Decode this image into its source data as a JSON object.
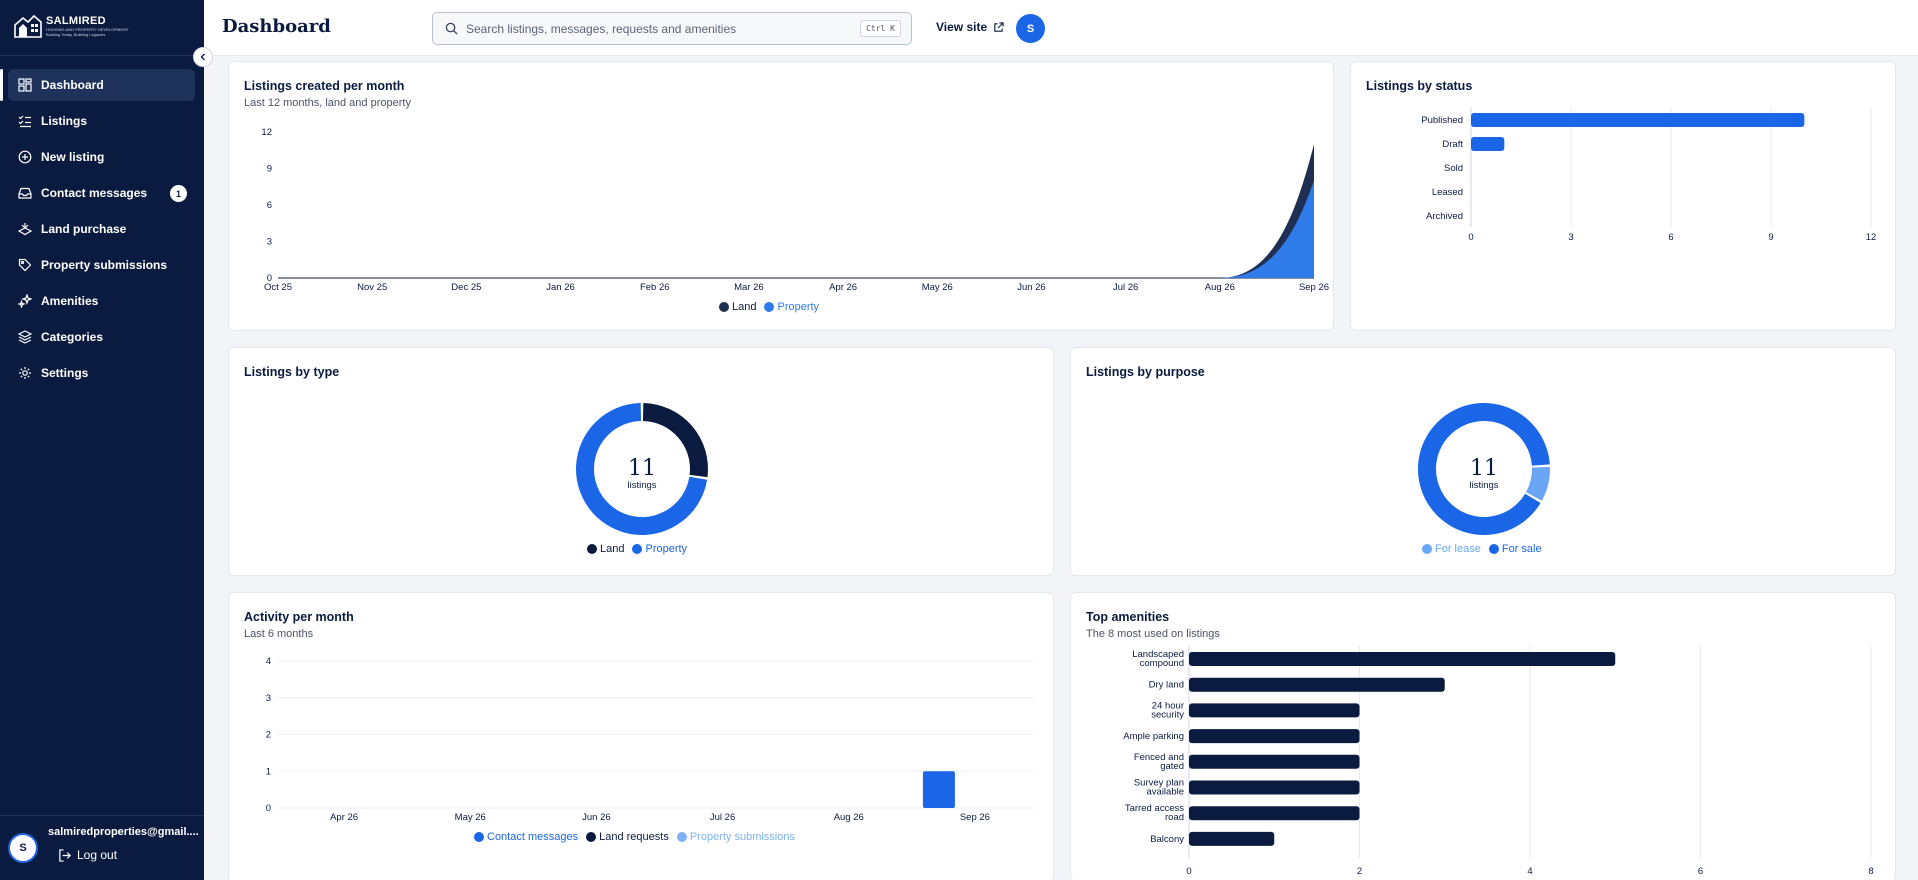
{
  "brand": {
    "name": "SALMIRED",
    "tagline": "HOUSING AND PROPERTY DEVELOPMENT",
    "motto": "Building Today, Building Legacies"
  },
  "colors": {
    "navy": "#0b1b3f",
    "blue": "#1a66e6",
    "light_blue": "#6aa6f5",
    "sidebar": "#0b1b3f"
  },
  "sidebar": {
    "items": [
      {
        "label": "Dashboard",
        "icon": "dashboard-icon",
        "active": true
      },
      {
        "label": "Listings",
        "icon": "list-check-icon"
      },
      {
        "label": "New listing",
        "icon": "plus-circle-icon"
      },
      {
        "label": "Contact messages",
        "icon": "inbox-icon",
        "badge": "1"
      },
      {
        "label": "Land purchase",
        "icon": "land-icon"
      },
      {
        "label": "Property submissions",
        "icon": "tag-icon"
      },
      {
        "label": "Amenities",
        "icon": "sparkle-icon"
      },
      {
        "label": "Categories",
        "icon": "layers-icon"
      },
      {
        "label": "Settings",
        "icon": "gear-icon"
      }
    ],
    "user_initial": "S",
    "user_email": "salmiredproperties@gmail....",
    "logout_label": "Log out"
  },
  "header": {
    "title": "Dashboard",
    "search_placeholder": "Search listings, messages, requests and amenities",
    "shortcut": "Ctrl K",
    "view_site_label": "View site",
    "avatar_initial": "S"
  },
  "cards": {
    "listings_per_month": {
      "title": "Listings created per month",
      "subtitle": "Last 12 months, land and property"
    },
    "listings_by_status": {
      "title": "Listings by status"
    },
    "listings_by_type": {
      "title": "Listings by type",
      "center_value": "11",
      "center_label": "listings"
    },
    "listings_by_purpose": {
      "title": "Listings by purpose",
      "center_value": "11",
      "center_label": "listings"
    },
    "activity_per_month": {
      "title": "Activity per month",
      "subtitle": "Last 6 months"
    },
    "top_amenities": {
      "title": "Top amenities",
      "subtitle": "The 8 most used on listings"
    }
  },
  "chart_data": [
    {
      "id": "listings_per_month",
      "type": "area",
      "stacked": true,
      "categories": [
        "Oct 25",
        "Nov 25",
        "Dec 25",
        "Jan 26",
        "Feb 26",
        "Mar 26",
        "Apr 26",
        "May 26",
        "Jun 26",
        "Jul 26",
        "Aug 26",
        "Sep 26"
      ],
      "series": [
        {
          "name": "Land",
          "color": "#1f2f52",
          "values": [
            0,
            0,
            0,
            0,
            0,
            0,
            0,
            0,
            0,
            0,
            0,
            3
          ]
        },
        {
          "name": "Property",
          "color": "#2f7be9",
          "values": [
            0,
            0,
            0,
            0,
            0,
            0,
            0,
            0,
            0,
            0,
            0,
            8
          ]
        }
      ],
      "yticks": [
        0,
        3,
        6,
        9,
        12
      ],
      "ylim": [
        0,
        12
      ]
    },
    {
      "id": "listings_by_status",
      "type": "bar",
      "orientation": "horizontal",
      "categories": [
        "Published",
        "Draft",
        "Sold",
        "Leased",
        "Archived"
      ],
      "values": [
        10,
        1,
        0,
        0,
        0
      ],
      "xticks": [
        0,
        3,
        6,
        9,
        12
      ],
      "xlim": [
        0,
        12
      ],
      "color": "#1a66e6"
    },
    {
      "id": "listings_by_type",
      "type": "pie",
      "donut": true,
      "labels": [
        "Land",
        "Property"
      ],
      "values": [
        3,
        8
      ],
      "colors": [
        "#0b1b3f",
        "#1a66e6"
      ]
    },
    {
      "id": "listings_by_purpose",
      "type": "pie",
      "donut": true,
      "labels": [
        "For lease",
        "For sale"
      ],
      "values": [
        1,
        10
      ],
      "colors": [
        "#6aa6f5",
        "#1a66e6"
      ]
    },
    {
      "id": "activity_per_month",
      "type": "bar",
      "categories": [
        "Apr 26",
        "May 26",
        "Jun 26",
        "Jul 26",
        "Aug 26",
        "Sep 26"
      ],
      "series": [
        {
          "name": "Contact messages",
          "color": "#1a66e6",
          "values": [
            0,
            0,
            0,
            0,
            0,
            1
          ]
        },
        {
          "name": "Land requests",
          "color": "#0b1b3f",
          "values": [
            0,
            0,
            0,
            0,
            0,
            0
          ]
        },
        {
          "name": "Property submissions",
          "color": "#7fb0f2",
          "values": [
            0,
            0,
            0,
            0,
            0,
            0
          ]
        }
      ],
      "yticks": [
        0,
        1,
        2,
        3,
        4
      ],
      "ylim": [
        0,
        4
      ]
    },
    {
      "id": "top_amenities",
      "type": "bar",
      "orientation": "horizontal",
      "categories": [
        [
          "Landscaped",
          "compound"
        ],
        [
          "Dry land"
        ],
        [
          "24 hour",
          "security"
        ],
        [
          "Ample parking"
        ],
        [
          "Fenced and",
          "gated"
        ],
        [
          "Survey plan",
          "available"
        ],
        [
          "Tarred access",
          "road"
        ],
        [
          "Balcony"
        ]
      ],
      "values": [
        5,
        3,
        2,
        2,
        2,
        2,
        2,
        1
      ],
      "xticks": [
        0,
        2,
        4,
        6,
        8
      ],
      "xlim": [
        0,
        8
      ],
      "color": "#0b1b3f"
    }
  ]
}
